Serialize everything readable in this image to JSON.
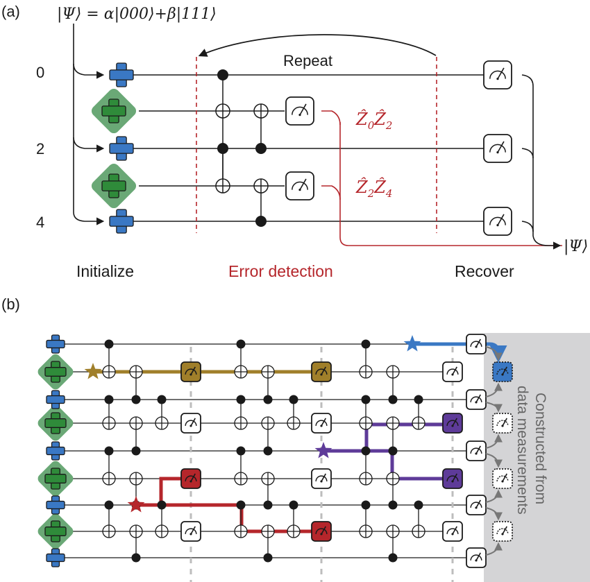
{
  "panel_a": {
    "label": "(a)",
    "state_text": "|Ψ⟩ = α|000⟩+β|111⟩",
    "qubit_labels": [
      "0",
      "2",
      "4"
    ],
    "repeat_label": "Repeat",
    "stabilizers": [
      {
        "op": "Ẑ",
        "sub1": "0",
        "sub2": "2"
      },
      {
        "op": "Ẑ",
        "sub1": "2",
        "sub2": "4"
      }
    ],
    "output_state": "|Ψ⟩",
    "stage_labels": {
      "initialize": "Initialize",
      "error_detection": "Error detection",
      "recover": "Recover"
    }
  },
  "panel_b": {
    "label": "(b)",
    "side_label_line1": "Constructed from",
    "side_label_line2": "data measurements"
  },
  "colors": {
    "data_qubit": "#3a78c4",
    "ancilla_qubit": "#2f8b3a",
    "ancilla_diamond": "#6aa876",
    "error_red": "#b5262b",
    "gold_path": "#a07f2a",
    "purple_path": "#5e3b99",
    "blue_path": "#3a78c4",
    "gray_panel": "#d4d4d6"
  }
}
